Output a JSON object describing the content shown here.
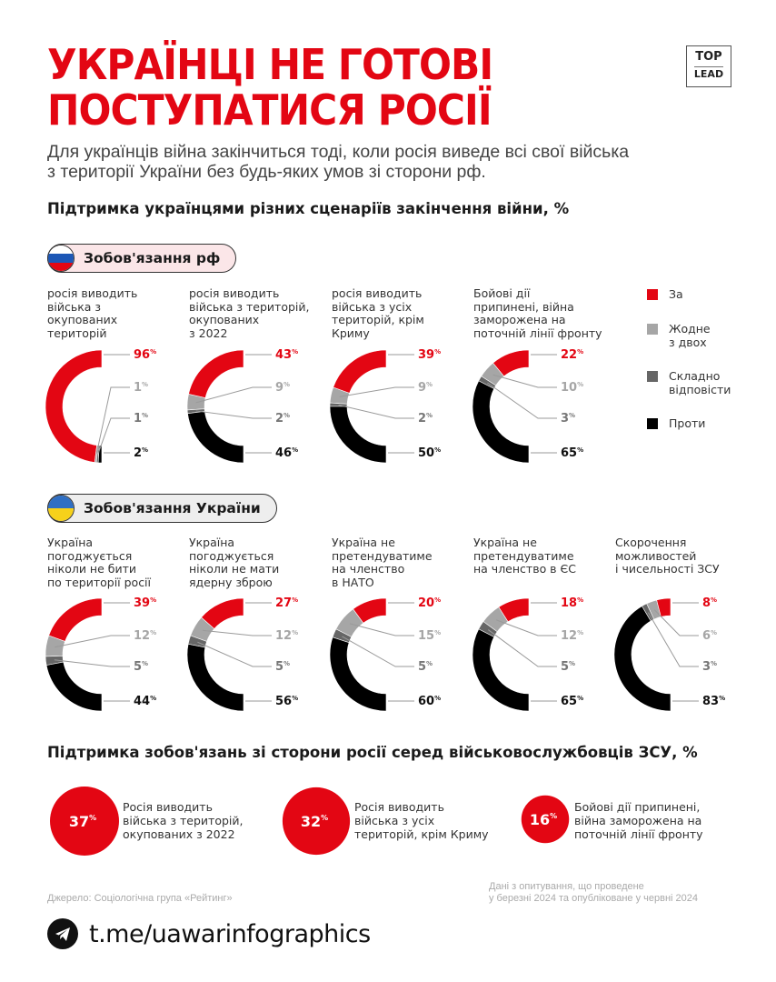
{
  "header": {
    "title_line1": "УКРАЇНЦІ НЕ ГОТОВІ",
    "title_line2": "ПОСТУПАТИСЯ РОСІЇ",
    "logo_top": "TOP",
    "logo_bottom": "LEAD",
    "intro_line1": "Для українців війна закінчиться тоді, коли росія виведе всі свої війська",
    "intro_line2": "з території України без будь-яких умов зі сторони рф."
  },
  "section1_title": "Підтримка українцями різних сценаріїв закінчення війни, %",
  "group_ru_label": "Зобов'язання рф",
  "group_ua_label": "Зобов'язання України",
  "legend": [
    {
      "label": "За",
      "color": "#e30613"
    },
    {
      "label": "Жодне\nз двох",
      "color": "#a6a6a6"
    },
    {
      "label": "Складно\nвідповісти",
      "color": "#666666"
    },
    {
      "label": "Проти",
      "color": "#000000"
    }
  ],
  "colors": {
    "for": "#e30613",
    "neither": "#a6a6a6",
    "hard": "#666666",
    "against": "#000000"
  },
  "chart_data": [
    {
      "type": "pie",
      "group": "Зобов'язання рф",
      "title": "росія виводить\nвійська з\nокупованих\nтериторій",
      "categories": [
        "За",
        "Жодне з двох",
        "Складно відповісти",
        "Проти"
      ],
      "values": [
        96,
        1,
        1,
        2
      ],
      "labels": [
        "96%",
        "1%",
        "1%",
        "2%"
      ]
    },
    {
      "type": "pie",
      "group": "Зобов'язання рф",
      "title": "росія виводить\nвійська з територій,\nокупованих\nз 2022",
      "categories": [
        "За",
        "Жодне з двох",
        "Складно відповісти",
        "Проти"
      ],
      "values": [
        43,
        9,
        2,
        46
      ],
      "labels": [
        "43%",
        "9%",
        "2%",
        "46%"
      ]
    },
    {
      "type": "pie",
      "group": "Зобов'язання рф",
      "title": "росія виводить\nвійська з усіх\nтериторій, крім\nКриму",
      "categories": [
        "За",
        "Жодне з двох",
        "Складно відповісти",
        "Проти"
      ],
      "values": [
        39,
        9,
        2,
        50
      ],
      "labels": [
        "39%",
        "9%",
        "2%",
        "50%"
      ]
    },
    {
      "type": "pie",
      "group": "Зобов'язання рф",
      "title": "Бойові дії\nприпинені, війна\nзаморожена на\nпоточній лінії фронту",
      "categories": [
        "За",
        "Жодне з двох",
        "Складно відповісти",
        "Проти"
      ],
      "values": [
        22,
        10,
        3,
        65
      ],
      "labels": [
        "22%",
        "10%",
        "3%",
        "65%"
      ]
    },
    {
      "type": "pie",
      "group": "Зобов'язання України",
      "title": "Україна\nпогоджується\nніколи не бити\nпо території росії",
      "categories": [
        "За",
        "Жодне з двох",
        "Складно відповісти",
        "Проти"
      ],
      "values": [
        39,
        12,
        5,
        44
      ],
      "labels": [
        "39%",
        "12%",
        "5%",
        "44%"
      ]
    },
    {
      "type": "pie",
      "group": "Зобов'язання України",
      "title": "Україна\nпогоджується\nніколи не мати\nядерну зброю",
      "categories": [
        "За",
        "Жодне з двох",
        "Складно відповісти",
        "Проти"
      ],
      "values": [
        27,
        12,
        5,
        56
      ],
      "labels": [
        "27%",
        "12%",
        "5%",
        "56%"
      ]
    },
    {
      "type": "pie",
      "group": "Зобов'язання України",
      "title": "Україна не\nпретендуватиме\nна членство\nв НАТО",
      "categories": [
        "За",
        "Жодне з двох",
        "Складно відповісти",
        "Проти"
      ],
      "values": [
        20,
        15,
        5,
        60
      ],
      "labels": [
        "20%",
        "15%",
        "5%",
        "60%"
      ]
    },
    {
      "type": "pie",
      "group": "Зобов'язання України",
      "title": "Україна не\nпретендуватиме\nна членство в ЄС",
      "categories": [
        "За",
        "Жодне з двох",
        "Складно відповісти",
        "Проти"
      ],
      "values": [
        18,
        12,
        5,
        65
      ],
      "labels": [
        "18%",
        "12%",
        "5%",
        "65%"
      ]
    },
    {
      "type": "pie",
      "group": "Зобов'язання України",
      "title": "Скорочення\nможливостей\nі чисельності ЗСУ",
      "categories": [
        "За",
        "Жодне з двох",
        "Складно відповісти",
        "Проти"
      ],
      "values": [
        8,
        6,
        3,
        83
      ],
      "labels": [
        "8%",
        "6%",
        "3%",
        "83%"
      ]
    },
    {
      "type": "scatter",
      "title": "Підтримка зобов'язань зі сторони росії серед військовослужбовців ЗСУ, %",
      "categories": [
        "Росія виводить війська з територій, окупованих з 2022",
        "Росія виводить війська з усіх територій, крім Криму",
        "Бойові дії припинені, війна заморожена на поточній лінії фронту"
      ],
      "values": [
        37,
        32,
        16
      ],
      "labels": [
        "37%",
        "32%",
        "16%"
      ]
    }
  ],
  "section2_title": "Підтримка зобов'язань зі сторони росії серед військовослужбовців ЗСУ, %",
  "bubbles": [
    {
      "value_label": "37%",
      "text": "Росія виводить\nвійська з територій,\nокупованих з 2022"
    },
    {
      "value_label": "32%",
      "text": "Росія виводить\nвійська з усіх\nтериторій, крім Криму"
    },
    {
      "value_label": "16%",
      "text": "Бойові дії припинені,\nвійна заморожена на\nпоточній лінії фронту"
    }
  ],
  "footer": {
    "source": "Джерело: Соціологічна група «Рейтинг»",
    "note": "Дані з опитування, що проведене\nу березні 2024 та опубліковане у червні 2024",
    "telegram_url": "t.me/uawarinfographics"
  }
}
